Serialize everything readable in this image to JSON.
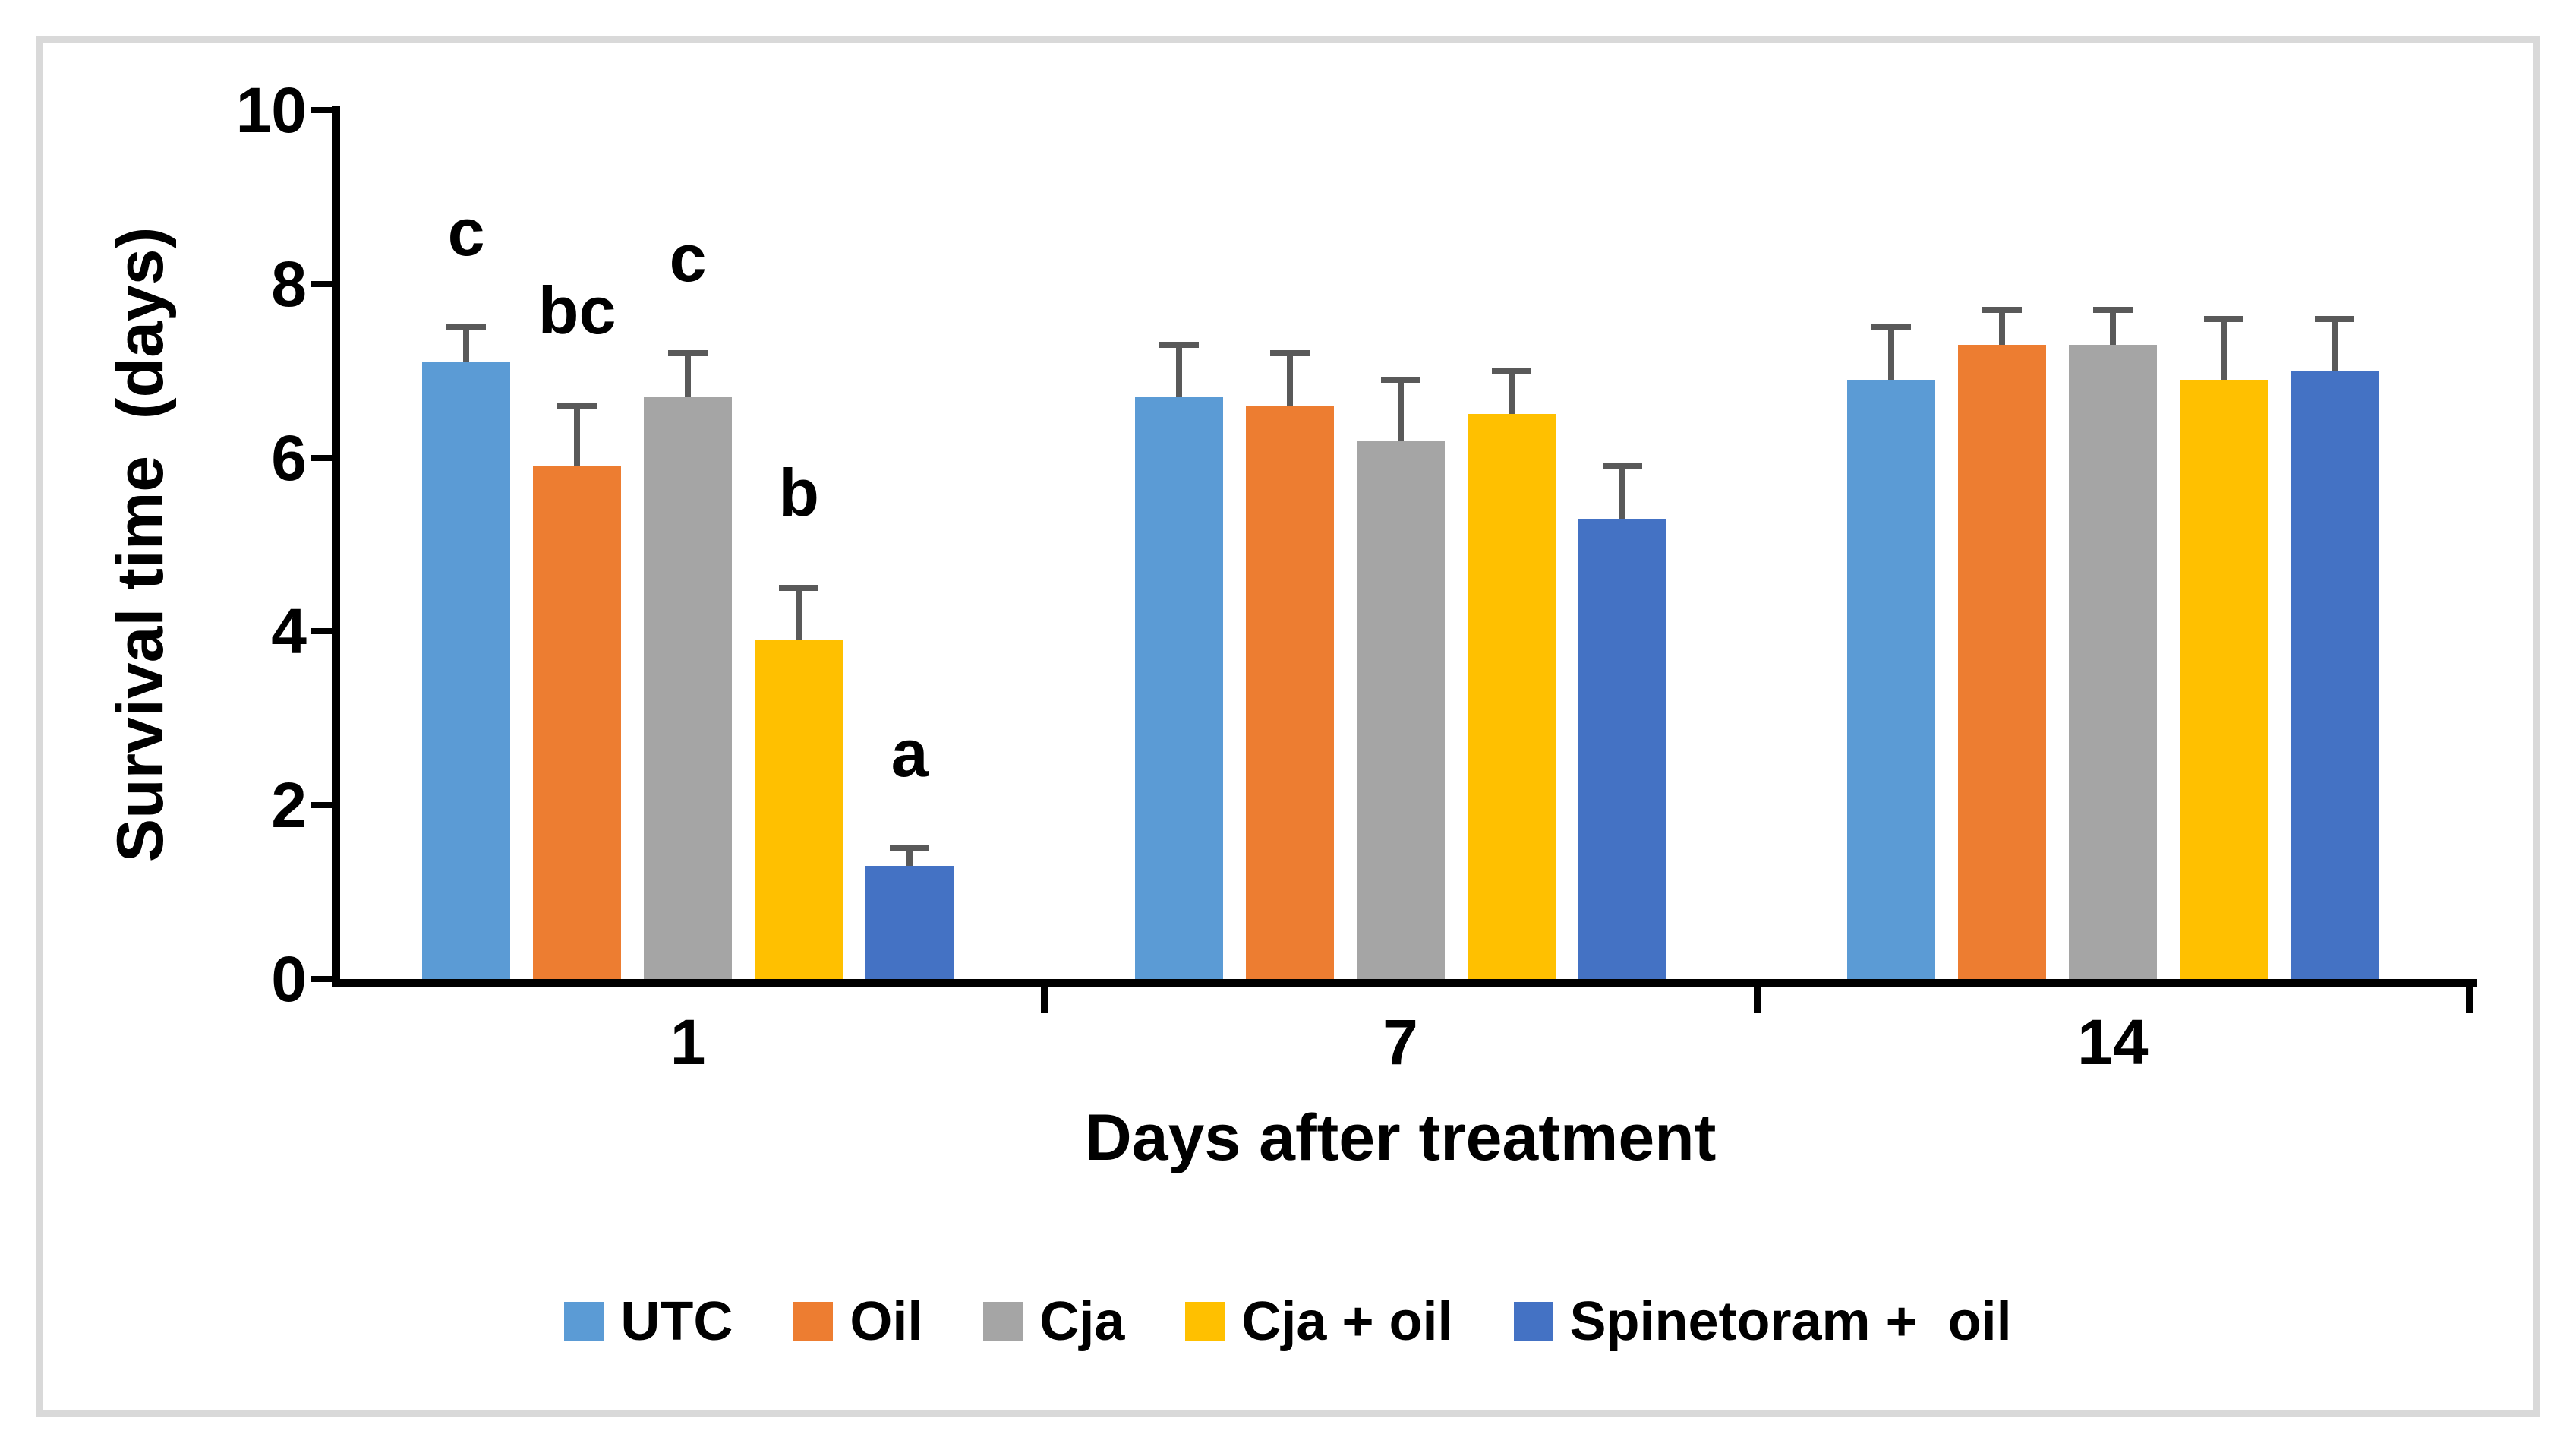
{
  "chart_data": {
    "type": "bar",
    "title": "",
    "xlabel": "Days after treatment",
    "ylabel": "Survival time  (days)",
    "ylim": [
      0,
      10
    ],
    "yticks": [
      0,
      2,
      4,
      6,
      8,
      10
    ],
    "categories": [
      "1",
      "7",
      "14"
    ],
    "series": [
      {
        "name": "UTC",
        "color": "#5B9BD5",
        "values": [
          7.1,
          6.7,
          6.9
        ],
        "errors": [
          0.4,
          0.6,
          0.6
        ]
      },
      {
        "name": "Oil",
        "color": "#ED7D31",
        "values": [
          5.9,
          6.6,
          7.3
        ],
        "errors": [
          0.7,
          0.6,
          0.4
        ]
      },
      {
        "name": "Cja",
        "color": "#A5A5A5",
        "values": [
          6.7,
          6.2,
          7.3
        ],
        "errors": [
          0.5,
          0.7,
          0.4
        ]
      },
      {
        "name": "Cja + oil",
        "color": "#FFC000",
        "values": [
          3.9,
          6.5,
          6.9
        ],
        "errors": [
          0.6,
          0.5,
          0.7
        ]
      },
      {
        "name": "Spinetoram +  oil",
        "color": "#4472C4",
        "values": [
          1.3,
          5.3,
          7.0
        ],
        "errors": [
          0.2,
          0.6,
          0.6
        ]
      }
    ],
    "significance": {
      "category": "1",
      "letters": [
        "c",
        "bc",
        "c",
        "b",
        "a"
      ]
    },
    "legend_position": "bottom",
    "grid": false,
    "error_bar_color": "#595959",
    "axis_color": "#000000",
    "frame_border_color": "#D9D9D9",
    "background_color": "#FFFFFF"
  }
}
